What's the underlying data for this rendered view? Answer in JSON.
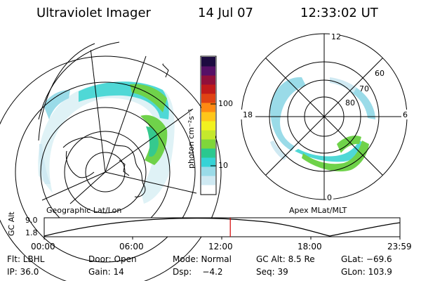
{
  "header": {
    "instrument": "Ultraviolet Imager",
    "date": "14 Jul 07",
    "time": "12:33:02 UT"
  },
  "left_panel": {
    "caption": "Geographic Lat/Lon"
  },
  "colorbar": {
    "unit_label": "photon cm⁻²s⁻¹",
    "ticks": [
      "100",
      "10"
    ],
    "scale": "log",
    "colors": [
      "#ffffff",
      "#cfe9f2",
      "#9adbe8",
      "#35d3d6",
      "#2ac88f",
      "#7fd63a",
      "#c5e82c",
      "#f2f21f",
      "#ffc61a",
      "#ff8a12",
      "#e04313",
      "#c01a1a",
      "#90103a",
      "#561066",
      "#1c0b40"
    ]
  },
  "right_panel": {
    "caption": "Apex MLat/MLT",
    "mlt_labels": [
      "12",
      "18",
      "6",
      "0"
    ],
    "lat_labels": [
      "60",
      "70",
      "80"
    ]
  },
  "altitude_plot": {
    "ylabel": "GC Alt",
    "yticks": [
      "9.0",
      "1.8"
    ],
    "xticks": [
      "00:00",
      "06:00",
      "12:00",
      "18:00",
      "23:59"
    ],
    "current_time_fraction": 0.523,
    "marker_color": "#d40000"
  },
  "footer": {
    "row1": [
      {
        "key": "flt",
        "text": "Flt: LBHL"
      },
      {
        "key": "door",
        "text": "Door: Open"
      },
      {
        "key": "mode",
        "text": "Mode: Normal"
      },
      {
        "key": "gcalt",
        "text": "GC Alt: 8.5 Re"
      },
      {
        "key": "glat",
        "text": "GLat: −69.6"
      }
    ],
    "row2": [
      {
        "key": "ip",
        "text": "IP: 36.0"
      },
      {
        "key": "gain",
        "text": "Gain: 14"
      },
      {
        "key": "dsp",
        "text": "Dsp:    −4.2"
      },
      {
        "key": "seq",
        "text": "Seq: 39"
      },
      {
        "key": "glon",
        "text": "GLon: 103.9"
      }
    ]
  }
}
